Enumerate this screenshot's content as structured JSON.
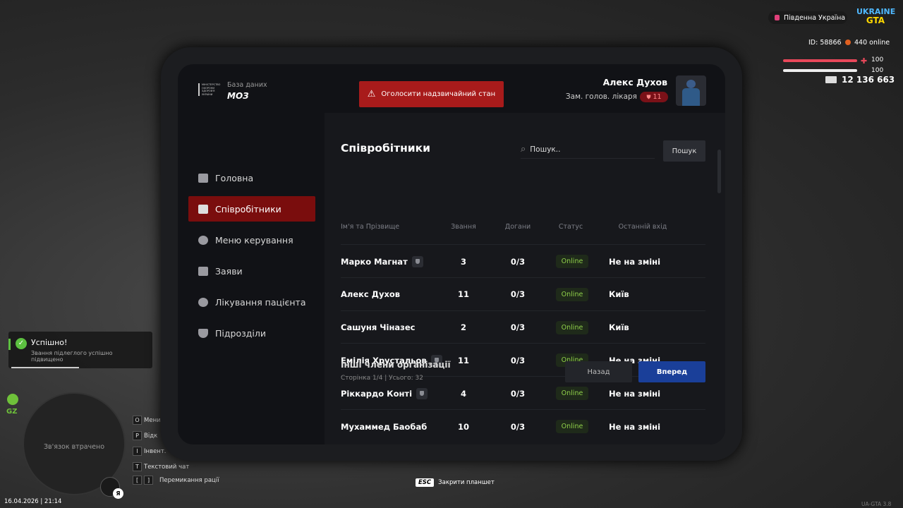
{
  "hud": {
    "server": "Південна Україна",
    "logo_top": "UKRAINE",
    "logo_bottom": "GTA",
    "player_id": "ID: 58866",
    "online": "440 online",
    "health": "100",
    "armor": "100",
    "money": "12 136 663",
    "version": "UA-GTA 3.8",
    "datetime": "16.04.2026 | 21:14"
  },
  "notification": {
    "title": "Успішно!",
    "text": "Звання підлеглого успішно підвищено"
  },
  "minimap": {
    "zone": "GZ",
    "status": "Зв'язок втрачено",
    "mic": "Я"
  },
  "hotkeys": [
    {
      "keys": [
        "O"
      ],
      "label": "Мени"
    },
    {
      "keys": [
        "P"
      ],
      "label": "Відк"
    },
    {
      "keys": [
        "I"
      ],
      "label": "Інвент."
    },
    {
      "keys": [
        "T"
      ],
      "label": "Текстовий чат"
    },
    {
      "keys": [
        "[",
        "]"
      ],
      "label": "Перемикання рації"
    }
  ],
  "esc_hint": {
    "key": "ESC",
    "label": "Закрити планшет"
  },
  "header": {
    "emblem": "МІНІСТЕРСТВО ОХОРОНИ ЗДОРОВ'Я УКРАЇНИ",
    "subtitle": "База даних",
    "title": "МОЗ",
    "emergency_button": "Оголосити надзвичайний стан",
    "user_name": "Алекс Духов",
    "user_role": "Зам. голов. лікаря",
    "user_rank": "11"
  },
  "nav": [
    "Головна",
    "Співробітники",
    "Меню керування",
    "Заяви",
    "Лікування пацієнта",
    "Підрозділи"
  ],
  "content": {
    "heading": "Співробітники",
    "search_placeholder": "Пошук..",
    "search_button": "Пошук",
    "columns": [
      "Ім'я та Прізвище",
      "Звання",
      "Догани",
      "Статус",
      "Останній вхід"
    ],
    "rows": [
      [
        "Марко Магнат",
        3,
        "0/3",
        "Online",
        "Не на зміні"
      ],
      [
        "Алекс Духов",
        11,
        "0/3",
        "Online",
        "Київ"
      ],
      [
        "Сашуня Чіназес",
        2,
        "0/3",
        "Online",
        "Київ"
      ],
      [
        "Емілія Хрустальов",
        11,
        "0/3",
        "Online",
        "Не на зміні"
      ],
      [
        "Ріккардо Конті",
        4,
        "0/3",
        "Online",
        "Не на зміні"
      ],
      [
        "Мухаммед Баобаб",
        10,
        "0/3",
        "Online",
        "Не на зміні"
      ]
    ],
    "footer_title": "Інші члени організації",
    "footer_info": "Сторінка 1/4 | Усього: 32",
    "back_button": "Назад",
    "next_button": "Вперед"
  }
}
